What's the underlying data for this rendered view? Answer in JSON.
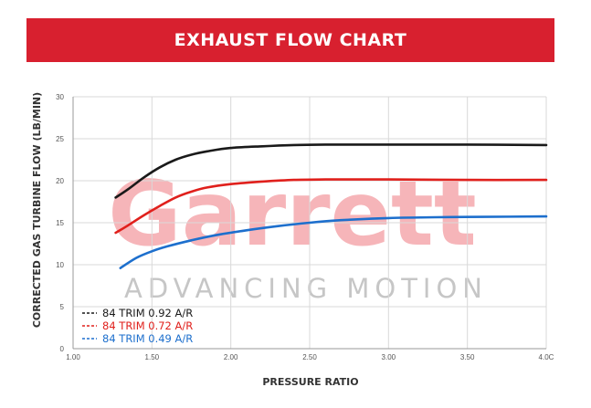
{
  "banner": {
    "title": "EXHAUST FLOW CHART",
    "color": "#d8202f"
  },
  "watermark": {
    "brand": "Garrett",
    "tagline": "ADVANCING MOTION",
    "color": "#f6b5b9",
    "tagline_color": "#c6c6c6"
  },
  "chart_data": {
    "type": "line",
    "xlabel": "PRESSURE RATIO",
    "ylabel": "CORRECTED GAS TURBINE FLOW (LB/MIN)",
    "xlim": [
      1.0,
      4.0
    ],
    "ylim": [
      0,
      30
    ],
    "xticks": [
      1.0,
      1.5,
      2.0,
      2.5,
      3.0,
      3.5,
      4.0
    ],
    "xtick_labels": [
      "1.00",
      "1.50",
      "2.00",
      "2.50",
      "3.00",
      "3.50",
      "4.0C"
    ],
    "yticks": [
      0,
      5,
      10,
      15,
      20,
      25,
      30
    ],
    "ytick_labels": [
      "0",
      "5",
      "10",
      "15",
      "20",
      "25",
      "30"
    ],
    "grid": true,
    "legend_position": "bottom-left",
    "series": [
      {
        "name": "84 TRIM 0.92 A/R",
        "color": "#1a1a1a",
        "x": [
          1.27,
          1.35,
          1.45,
          1.55,
          1.65,
          1.75,
          1.85,
          2.0,
          2.2,
          2.4,
          2.6,
          2.8,
          3.0,
          3.5,
          4.0
        ],
        "y": [
          18.0,
          19.0,
          20.4,
          21.6,
          22.5,
          23.1,
          23.5,
          23.9,
          24.1,
          24.25,
          24.3,
          24.3,
          24.3,
          24.3,
          24.25
        ]
      },
      {
        "name": "84 TRIM 0.72 A/R",
        "color": "#e0201c",
        "x": [
          1.27,
          1.35,
          1.45,
          1.55,
          1.65,
          1.75,
          1.85,
          2.0,
          2.2,
          2.4,
          2.6,
          2.8,
          3.0,
          3.5,
          4.0
        ],
        "y": [
          13.8,
          14.7,
          15.9,
          17.0,
          18.0,
          18.7,
          19.2,
          19.6,
          19.9,
          20.1,
          20.15,
          20.15,
          20.15,
          20.1,
          20.1
        ]
      },
      {
        "name": "84 TRIM 0.49 A/R",
        "color": "#1d6fcd",
        "x": [
          1.3,
          1.4,
          1.5,
          1.6,
          1.75,
          1.9,
          2.1,
          2.3,
          2.5,
          2.7,
          3.0,
          3.3,
          3.6,
          4.0
        ],
        "y": [
          9.6,
          10.8,
          11.6,
          12.2,
          12.9,
          13.5,
          14.1,
          14.6,
          15.0,
          15.3,
          15.55,
          15.65,
          15.7,
          15.75
        ]
      }
    ]
  }
}
